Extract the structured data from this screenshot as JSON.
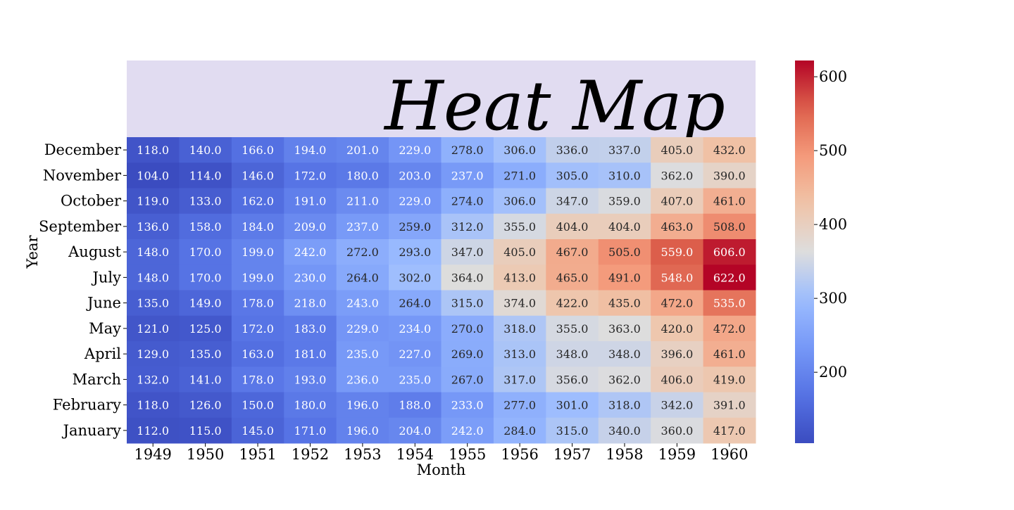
{
  "chart_data": {
    "type": "heatmap",
    "title": "Heat Map",
    "xlabel": "Month",
    "ylabel": "Year",
    "x_categories": [
      "1949",
      "1950",
      "1951",
      "1952",
      "1953",
      "1954",
      "1955",
      "1956",
      "1957",
      "1958",
      "1959",
      "1960"
    ],
    "y_categories": [
      "December",
      "November",
      "October",
      "September",
      "August",
      "July",
      "June",
      "May",
      "April",
      "March",
      "February",
      "January"
    ],
    "values": [
      [
        118.0,
        140.0,
        166.0,
        194.0,
        201.0,
        229.0,
        278.0,
        306.0,
        336.0,
        337.0,
        405.0,
        432.0
      ],
      [
        104.0,
        114.0,
        146.0,
        172.0,
        180.0,
        203.0,
        237.0,
        271.0,
        305.0,
        310.0,
        362.0,
        390.0
      ],
      [
        119.0,
        133.0,
        162.0,
        191.0,
        211.0,
        229.0,
        274.0,
        306.0,
        347.0,
        359.0,
        407.0,
        461.0
      ],
      [
        136.0,
        158.0,
        184.0,
        209.0,
        237.0,
        259.0,
        312.0,
        355.0,
        404.0,
        404.0,
        463.0,
        508.0
      ],
      [
        148.0,
        170.0,
        199.0,
        242.0,
        272.0,
        293.0,
        347.0,
        405.0,
        467.0,
        505.0,
        559.0,
        606.0
      ],
      [
        148.0,
        170.0,
        199.0,
        230.0,
        264.0,
        302.0,
        364.0,
        413.0,
        465.0,
        491.0,
        548.0,
        622.0
      ],
      [
        135.0,
        149.0,
        178.0,
        218.0,
        243.0,
        264.0,
        315.0,
        374.0,
        422.0,
        435.0,
        472.0,
        535.0
      ],
      [
        121.0,
        125.0,
        172.0,
        183.0,
        229.0,
        234.0,
        270.0,
        318.0,
        355.0,
        363.0,
        420.0,
        472.0
      ],
      [
        129.0,
        135.0,
        163.0,
        181.0,
        235.0,
        227.0,
        269.0,
        313.0,
        348.0,
        348.0,
        396.0,
        461.0
      ],
      [
        132.0,
        141.0,
        178.0,
        193.0,
        236.0,
        235.0,
        267.0,
        317.0,
        356.0,
        362.0,
        406.0,
        419.0
      ],
      [
        118.0,
        126.0,
        150.0,
        180.0,
        196.0,
        188.0,
        233.0,
        277.0,
        301.0,
        318.0,
        342.0,
        391.0
      ],
      [
        112.0,
        115.0,
        145.0,
        171.0,
        196.0,
        204.0,
        242.0,
        284.0,
        315.0,
        340.0,
        360.0,
        417.0
      ]
    ],
    "value_format": "0.1f",
    "colormap": "coolwarm",
    "vmin": 104.0,
    "vmax": 622.0,
    "colorbar_ticks": [
      200,
      300,
      400,
      500,
      600
    ],
    "title_background": "#e1dcf1",
    "colors": {
      "cool_end": "#3b4cc0",
      "mid": "#dddddd",
      "warm_end": "#b40426"
    }
  }
}
